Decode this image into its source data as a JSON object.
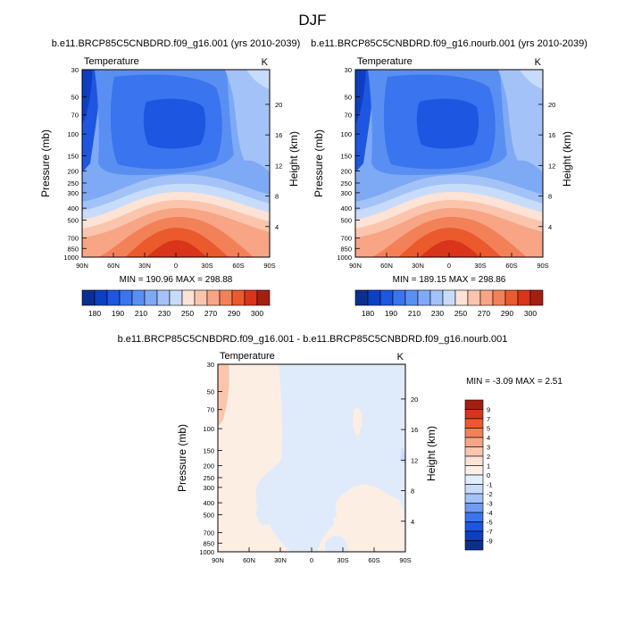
{
  "figure": {
    "title": "DJF"
  },
  "chart_data": [
    {
      "type": "heatmap",
      "plot_kind": "filled-contour latitude-pressure section",
      "title": "b.e11.BRCP85C5CNBDRD.f09_g16.001 (yrs 2010-2039)",
      "left_label": "Temperature",
      "right_label": "K",
      "xlabel": "",
      "ylabel": "Pressure (mb)",
      "ylabel_right": "Height (km)",
      "x_ticks": [
        "90N",
        "60N",
        "30N",
        "0",
        "30S",
        "60S",
        "90S"
      ],
      "y_ticks": [
        "30",
        "50",
        "70",
        "100",
        "150",
        "200",
        "250",
        "300",
        "400",
        "500",
        "700",
        "850",
        "1000"
      ],
      "height_ticks": [
        "20",
        "16",
        "12",
        "8",
        "4"
      ],
      "minmax_label": "MIN = 190.96  MAX = 298.88",
      "colorbar": {
        "orientation": "horizontal",
        "colors": [
          "#0a2f8f",
          "#0d3fc4",
          "#1d56e0",
          "#3a74ee",
          "#5a8ff2",
          "#7ea9f5",
          "#a3c3f8",
          "#c7dcfb",
          "#fde3d6",
          "#fbc5ad",
          "#f8a585",
          "#f28158",
          "#ea5a2c",
          "#d8351a",
          "#a51f0f"
        ],
        "labels": [
          "180",
          "190",
          "210",
          "230",
          "250",
          "270",
          "290",
          "300"
        ],
        "levels": [
          180,
          190,
          200,
          210,
          220,
          230,
          240,
          250,
          260,
          270,
          280,
          290,
          300
        ]
      }
    },
    {
      "type": "heatmap",
      "plot_kind": "filled-contour latitude-pressure section",
      "title": "b.e11.BRCP85C5CNBDRD.f09_g16.nourb.001 (yrs 2010-2039)",
      "left_label": "Temperature",
      "right_label": "K",
      "xlabel": "",
      "ylabel": "Pressure (mb)",
      "ylabel_right": "Height (km)",
      "x_ticks": [
        "90N",
        "60N",
        "30N",
        "0",
        "30S",
        "60S",
        "90S"
      ],
      "y_ticks": [
        "30",
        "50",
        "70",
        "100",
        "150",
        "200",
        "250",
        "300",
        "400",
        "500",
        "700",
        "850",
        "1000"
      ],
      "height_ticks": [
        "20",
        "16",
        "12",
        "8",
        "4"
      ],
      "minmax_label": "MIN = 189.15  MAX = 298.86",
      "colorbar": {
        "orientation": "horizontal",
        "colors": [
          "#0a2f8f",
          "#0d3fc4",
          "#1d56e0",
          "#3a74ee",
          "#5a8ff2",
          "#7ea9f5",
          "#a3c3f8",
          "#c7dcfb",
          "#fde3d6",
          "#fbc5ad",
          "#f8a585",
          "#f28158",
          "#ea5a2c",
          "#d8351a",
          "#a51f0f"
        ],
        "labels": [
          "180",
          "190",
          "210",
          "230",
          "250",
          "270",
          "290",
          "300"
        ],
        "levels": [
          180,
          190,
          200,
          210,
          220,
          230,
          240,
          250,
          260,
          270,
          280,
          290,
          300
        ]
      }
    },
    {
      "type": "heatmap",
      "plot_kind": "filled-contour latitude-pressure section (difference)",
      "title": "b.e11.BRCP85C5CNBDRD.f09_g16.001 - b.e11.BRCP85C5CNBDRD.f09_g16.nourb.001",
      "left_label": "Temperature",
      "right_label": "K",
      "xlabel": "",
      "ylabel": "Pressure (mb)",
      "ylabel_right": "Height (km)",
      "x_ticks": [
        "90N",
        "60N",
        "30N",
        "0",
        "30S",
        "60S",
        "90S"
      ],
      "y_ticks": [
        "30",
        "50",
        "70",
        "100",
        "150",
        "200",
        "250",
        "300",
        "400",
        "500",
        "700",
        "850",
        "1000"
      ],
      "height_ticks": [
        "20",
        "16",
        "12",
        "8",
        "4"
      ],
      "minmax_label": "MIN = -3.09  MAX =   2.51",
      "colorbar": {
        "orientation": "vertical",
        "colors": [
          "#a51f0f",
          "#d8351a",
          "#ea5a2c",
          "#f28158",
          "#f8a585",
          "#fbc5ad",
          "#fde3d6",
          "#fdf0e8",
          "#e3eefb",
          "#c7dcfb",
          "#a3c3f8",
          "#6f9cf0",
          "#3a74ee",
          "#1d56e0",
          "#0d3fc4",
          "#0a2f8f"
        ],
        "labels": [
          "9",
          "7",
          "5",
          "4",
          "3",
          "2",
          "1",
          "0",
          "-1",
          "-2",
          "-3",
          "-4",
          "-5",
          "-7",
          "-9"
        ],
        "levels": [
          9,
          7,
          5,
          4,
          3,
          2,
          1,
          0,
          -1,
          -2,
          -3,
          -4,
          -5,
          -7,
          -9
        ]
      }
    }
  ]
}
